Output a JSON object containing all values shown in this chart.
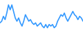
{
  "x": [
    0,
    1,
    2,
    3,
    4,
    5,
    6,
    7,
    8,
    9,
    10,
    11,
    12,
    13,
    14,
    15,
    16,
    17,
    18,
    19,
    20,
    21,
    22,
    23,
    24,
    25,
    26,
    27,
    28,
    29,
    30,
    31,
    32,
    33,
    34,
    35,
    36,
    37,
    38,
    39,
    40,
    41,
    42,
    43,
    44,
    45,
    46,
    47,
    48,
    49
  ],
  "y": [
    3.0,
    3.5,
    5.0,
    4.0,
    6.0,
    8.5,
    7.0,
    8.5,
    6.5,
    4.5,
    3.5,
    4.5,
    3.0,
    2.0,
    3.5,
    5.5,
    4.5,
    3.5,
    4.0,
    3.0,
    2.5,
    3.0,
    2.0,
    2.5,
    3.0,
    2.0,
    1.5,
    2.5,
    1.5,
    2.5,
    2.0,
    2.5,
    1.5,
    2.0,
    3.5,
    4.5,
    5.5,
    5.0,
    6.0,
    4.5,
    3.5,
    4.5,
    5.5,
    6.5,
    5.5,
    5.0,
    4.0,
    5.0,
    4.5,
    3.5
  ],
  "line_color": "#3399ff",
  "linewidth": 1.2,
  "background_color": "#ffffff",
  "ylim": [
    0.5,
    10.0
  ],
  "xlim": [
    0,
    49
  ]
}
